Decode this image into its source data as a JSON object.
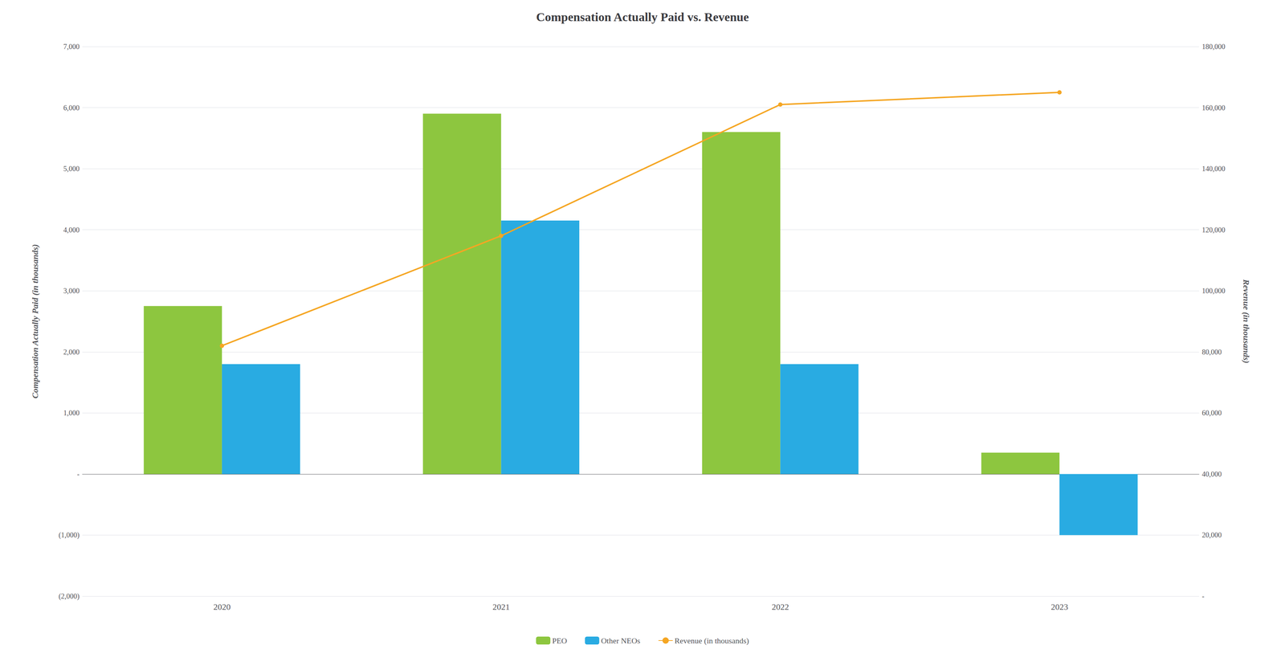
{
  "chart_data": {
    "type": "bar",
    "title": "Compensation Actually Paid vs. Revenue",
    "categories": [
      "2020",
      "2021",
      "2022",
      "2023"
    ],
    "series": [
      {
        "name": "PEO",
        "type": "bar",
        "color": "#8DC63F",
        "values": [
          2750,
          5900,
          5600,
          350
        ]
      },
      {
        "name": "Other NEOs",
        "type": "bar",
        "color": "#29ABE2",
        "values": [
          1800,
          4150,
          1800,
          -1000
        ]
      },
      {
        "name": "Revenue (in thousands)",
        "type": "line",
        "axis": "y2",
        "color": "#F5A623",
        "marker": "circle",
        "values": [
          82000,
          118000,
          161000,
          165000
        ]
      }
    ],
    "ylabel": "Compensation Actually Paid (in thousands)",
    "y2label": "Revenue (in thousands)",
    "ylim": [
      -2000,
      7000
    ],
    "yticks": [
      {
        "value": -2000,
        "label": "(2,000)"
      },
      {
        "value": -1000,
        "label": "(1,000)"
      },
      {
        "value": 0,
        "label": "-"
      },
      {
        "value": 1000,
        "label": "1,000"
      },
      {
        "value": 2000,
        "label": "2,000"
      },
      {
        "value": 3000,
        "label": "3,000"
      },
      {
        "value": 4000,
        "label": "4,000"
      },
      {
        "value": 5000,
        "label": "5,000"
      },
      {
        "value": 6000,
        "label": "6,000"
      },
      {
        "value": 7000,
        "label": "7,000"
      }
    ],
    "y2lim": [
      0,
      180000
    ],
    "y2ticks": [
      {
        "value": 0,
        "label": "-"
      },
      {
        "value": 20000,
        "label": "20,000"
      },
      {
        "value": 40000,
        "label": "40,000"
      },
      {
        "value": 60000,
        "label": "60,000"
      },
      {
        "value": 80000,
        "label": "80,000"
      },
      {
        "value": 100000,
        "label": "100,000"
      },
      {
        "value": 120000,
        "label": "120,000"
      },
      {
        "value": 140000,
        "label": "140,000"
      },
      {
        "value": 160000,
        "label": "160,000"
      },
      {
        "value": 180000,
        "label": "180,000"
      }
    ],
    "grid": true,
    "legend": "bottom"
  }
}
